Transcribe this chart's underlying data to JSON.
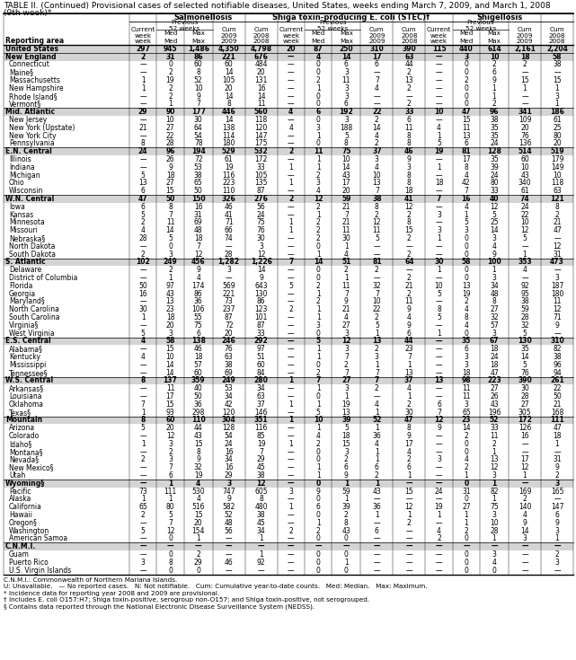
{
  "title_line1": "TABLE II. (Continued) Provisional cases of selected notifiable diseases, United States, weeks ending March 7, 2009, and March 1, 2008",
  "title_line2": "(9th week)*",
  "rows": [
    [
      "United States",
      "297",
      "945",
      "1,486",
      "4,350",
      "4,798",
      "20",
      "87",
      "250",
      "310",
      "390",
      "115",
      "440",
      "614",
      "2,161",
      "2,204"
    ],
    [
      "New England",
      "2",
      "31",
      "86",
      "221",
      "676",
      "—",
      "4",
      "14",
      "17",
      "63",
      "—",
      "3",
      "10",
      "18",
      "58"
    ],
    [
      "Connecticut",
      "—",
      "0",
      "60",
      "60",
      "484",
      "—",
      "0",
      "6",
      "6",
      "44",
      "—",
      "0",
      "2",
      "2",
      "38"
    ],
    [
      "Maine§",
      "—",
      "2",
      "8",
      "14",
      "20",
      "—",
      "0",
      "3",
      "—",
      "2",
      "—",
      "0",
      "6",
      "—",
      "—"
    ],
    [
      "Massachusetts",
      "1",
      "19",
      "52",
      "105",
      "131",
      "—",
      "2",
      "11",
      "7",
      "13",
      "—",
      "2",
      "9",
      "15",
      "15"
    ],
    [
      "New Hampshire",
      "1",
      "2",
      "10",
      "20",
      "16",
      "—",
      "1",
      "3",
      "4",
      "2",
      "—",
      "0",
      "1",
      "1",
      "1"
    ],
    [
      "Rhode Island§",
      "—",
      "2",
      "9",
      "14",
      "14",
      "—",
      "0",
      "3",
      "—",
      "—",
      "—",
      "0",
      "1",
      "—",
      "3"
    ],
    [
      "Vermont§",
      "—",
      "1",
      "7",
      "8",
      "11",
      "—",
      "0",
      "6",
      "—",
      "2",
      "—",
      "0",
      "2",
      "—",
      "1"
    ],
    [
      "Mid. Atlantic",
      "29",
      "90",
      "177",
      "446",
      "560",
      "4",
      "6",
      "192",
      "22",
      "33",
      "10",
      "47",
      "96",
      "341",
      "186"
    ],
    [
      "New Jersey",
      "—",
      "10",
      "30",
      "14",
      "118",
      "—",
      "0",
      "3",
      "2",
      "6",
      "—",
      "15",
      "38",
      "109",
      "61"
    ],
    [
      "New York (Upstate)",
      "21",
      "27",
      "64",
      "138",
      "120",
      "4",
      "3",
      "188",
      "14",
      "11",
      "4",
      "11",
      "35",
      "20",
      "25"
    ],
    [
      "New York City",
      "—",
      "22",
      "54",
      "114",
      "147",
      "—",
      "1",
      "5",
      "4",
      "8",
      "1",
      "13",
      "35",
      "76",
      "80"
    ],
    [
      "Pennsylvania",
      "8",
      "28",
      "78",
      "180",
      "175",
      "—",
      "0",
      "8",
      "2",
      "8",
      "5",
      "6",
      "24",
      "136",
      "20"
    ],
    [
      "E.N. Central",
      "24",
      "96",
      "194",
      "529",
      "532",
      "2",
      "11",
      "75",
      "37",
      "46",
      "19",
      "81",
      "128",
      "514",
      "519"
    ],
    [
      "Illinois",
      "—",
      "26",
      "72",
      "61",
      "172",
      "—",
      "1",
      "10",
      "3",
      "9",
      "—",
      "17",
      "35",
      "60",
      "179"
    ],
    [
      "Indiana",
      "—",
      "9",
      "53",
      "19",
      "33",
      "1",
      "1",
      "14",
      "4",
      "3",
      "1",
      "8",
      "39",
      "10",
      "149"
    ],
    [
      "Michigan",
      "5",
      "18",
      "38",
      "116",
      "105",
      "—",
      "2",
      "43",
      "10",
      "8",
      "—",
      "4",
      "24",
      "43",
      "10"
    ],
    [
      "Ohio",
      "13",
      "27",
      "65",
      "223",
      "135",
      "1",
      "3",
      "17",
      "13",
      "8",
      "18",
      "42",
      "80",
      "340",
      "118"
    ],
    [
      "Wisconsin",
      "6",
      "15",
      "50",
      "110",
      "87",
      "—",
      "4",
      "20",
      "7",
      "18",
      "—",
      "7",
      "33",
      "61",
      "63"
    ],
    [
      "W.N. Central",
      "47",
      "50",
      "150",
      "326",
      "276",
      "2",
      "12",
      "59",
      "38",
      "41",
      "7",
      "16",
      "40",
      "74",
      "121"
    ],
    [
      "Iowa",
      "6",
      "8",
      "16",
      "46",
      "56",
      "—",
      "2",
      "21",
      "8",
      "12",
      "—",
      "4",
      "12",
      "24",
      "8"
    ],
    [
      "Kansas",
      "5",
      "7",
      "31",
      "41",
      "24",
      "—",
      "1",
      "7",
      "2",
      "2",
      "3",
      "1",
      "5",
      "22",
      "2"
    ],
    [
      "Minnesota",
      "2",
      "11",
      "69",
      "71",
      "75",
      "1",
      "2",
      "21",
      "12",
      "8",
      "—",
      "5",
      "25",
      "10",
      "21"
    ],
    [
      "Missouri",
      "4",
      "14",
      "48",
      "66",
      "76",
      "1",
      "2",
      "11",
      "11",
      "15",
      "3",
      "3",
      "14",
      "12",
      "47"
    ],
    [
      "Nebraska§",
      "28",
      "5",
      "18",
      "74",
      "30",
      "—",
      "2",
      "30",
      "5",
      "2",
      "1",
      "0",
      "3",
      "5",
      "—"
    ],
    [
      "North Dakota",
      "—",
      "0",
      "7",
      "—",
      "3",
      "—",
      "0",
      "1",
      "—",
      "—",
      "—",
      "0",
      "4",
      "—",
      "12"
    ],
    [
      "South Dakota",
      "2",
      "3",
      "12",
      "28",
      "12",
      "—",
      "1",
      "4",
      "—",
      "2",
      "—",
      "0",
      "9",
      "1",
      "31"
    ],
    [
      "S. Atlantic",
      "102",
      "249",
      "456",
      "1,282",
      "1,226",
      "7",
      "14",
      "51",
      "81",
      "64",
      "30",
      "58",
      "100",
      "353",
      "473"
    ],
    [
      "Delaware",
      "—",
      "2",
      "9",
      "3",
      "14",
      "—",
      "0",
      "2",
      "2",
      "—",
      "1",
      "0",
      "1",
      "4",
      "—"
    ],
    [
      "District of Columbia",
      "—",
      "1",
      "4",
      "—",
      "9",
      "—",
      "0",
      "1",
      "—",
      "2",
      "—",
      "0",
      "3",
      "—",
      "3"
    ],
    [
      "Florida",
      "50",
      "97",
      "174",
      "569",
      "643",
      "5",
      "2",
      "11",
      "32",
      "21",
      "10",
      "13",
      "34",
      "92",
      "187"
    ],
    [
      "Georgia",
      "16",
      "43",
      "86",
      "221",
      "130",
      "—",
      "1",
      "7",
      "7",
      "2",
      "5",
      "19",
      "48",
      "95",
      "180"
    ],
    [
      "Maryland§",
      "—",
      "13",
      "36",
      "73",
      "86",
      "—",
      "2",
      "9",
      "10",
      "11",
      "—",
      "2",
      "8",
      "38",
      "11"
    ],
    [
      "North Carolina",
      "30",
      "23",
      "106",
      "237",
      "123",
      "2",
      "1",
      "21",
      "22",
      "9",
      "8",
      "4",
      "27",
      "59",
      "12"
    ],
    [
      "South Carolina",
      "1",
      "18",
      "55",
      "87",
      "101",
      "—",
      "1",
      "4",
      "2",
      "4",
      "5",
      "8",
      "32",
      "28",
      "71"
    ],
    [
      "Virginia§",
      "—",
      "20",
      "75",
      "72",
      "87",
      "—",
      "3",
      "27",
      "5",
      "9",
      "—",
      "4",
      "57",
      "32",
      "9"
    ],
    [
      "West Virginia",
      "5",
      "3",
      "6",
      "20",
      "33",
      "—",
      "0",
      "3",
      "1",
      "6",
      "1",
      "0",
      "3",
      "5",
      "—"
    ],
    [
      "E.S. Central",
      "4",
      "58",
      "138",
      "246",
      "292",
      "—",
      "5",
      "12",
      "13",
      "44",
      "—",
      "35",
      "67",
      "130",
      "310"
    ],
    [
      "Alabama§",
      "—",
      "15",
      "46",
      "76",
      "97",
      "—",
      "1",
      "3",
      "2",
      "23",
      "—",
      "6",
      "18",
      "35",
      "82"
    ],
    [
      "Kentucky",
      "4",
      "10",
      "18",
      "63",
      "51",
      "—",
      "1",
      "7",
      "3",
      "7",
      "—",
      "3",
      "24",
      "14",
      "38"
    ],
    [
      "Mississippi",
      "—",
      "14",
      "57",
      "38",
      "60",
      "—",
      "0",
      "2",
      "1",
      "1",
      "—",
      "3",
      "18",
      "5",
      "96"
    ],
    [
      "Tennessee§",
      "—",
      "14",
      "60",
      "69",
      "84",
      "—",
      "2",
      "7",
      "7",
      "13",
      "—",
      "18",
      "47",
      "76",
      "94"
    ],
    [
      "W.S. Central",
      "8",
      "137",
      "359",
      "249",
      "280",
      "1",
      "7",
      "27",
      "7",
      "37",
      "13",
      "98",
      "223",
      "390",
      "261"
    ],
    [
      "Arkansas§",
      "—",
      "11",
      "40",
      "53",
      "34",
      "—",
      "1",
      "3",
      "2",
      "4",
      "—",
      "11",
      "27",
      "30",
      "22"
    ],
    [
      "Louisiana",
      "—",
      "17",
      "50",
      "34",
      "63",
      "—",
      "0",
      "1",
      "—",
      "1",
      "—",
      "11",
      "26",
      "28",
      "50"
    ],
    [
      "Oklahoma",
      "7",
      "15",
      "36",
      "42",
      "37",
      "1",
      "1",
      "19",
      "4",
      "2",
      "6",
      "3",
      "43",
      "27",
      "21"
    ],
    [
      "Texas§",
      "1",
      "93",
      "298",
      "120",
      "146",
      "—",
      "5",
      "13",
      "1",
      "30",
      "7",
      "65",
      "196",
      "305",
      "168"
    ],
    [
      "Mountain",
      "8",
      "60",
      "110",
      "304",
      "351",
      "1",
      "10",
      "39",
      "52",
      "47",
      "12",
      "23",
      "52",
      "172",
      "111"
    ],
    [
      "Arizona",
      "5",
      "20",
      "44",
      "128",
      "116",
      "—",
      "1",
      "5",
      "1",
      "8",
      "9",
      "14",
      "33",
      "126",
      "47"
    ],
    [
      "Colorado",
      "—",
      "12",
      "43",
      "54",
      "85",
      "—",
      "4",
      "18",
      "36",
      "9",
      "—",
      "2",
      "11",
      "16",
      "18"
    ],
    [
      "Idaho§",
      "1",
      "3",
      "15",
      "24",
      "19",
      "1",
      "2",
      "15",
      "4",
      "17",
      "—",
      "0",
      "2",
      "—",
      "1"
    ],
    [
      "Montana§",
      "—",
      "2",
      "8",
      "16",
      "7",
      "—",
      "0",
      "3",
      "1",
      "4",
      "—",
      "0",
      "1",
      "—",
      "—"
    ],
    [
      "Nevada§",
      "2",
      "3",
      "9",
      "34",
      "29",
      "—",
      "0",
      "2",
      "1",
      "2",
      "3",
      "4",
      "13",
      "17",
      "31"
    ],
    [
      "New Mexico§",
      "—",
      "7",
      "32",
      "16",
      "45",
      "—",
      "1",
      "6",
      "6",
      "6",
      "—",
      "2",
      "12",
      "12",
      "9"
    ],
    [
      "Utah",
      "—",
      "6",
      "19",
      "29",
      "38",
      "—",
      "1",
      "9",
      "2",
      "1",
      "—",
      "1",
      "3",
      "1",
      "2"
    ],
    [
      "Wyoming§",
      "—",
      "1",
      "4",
      "3",
      "12",
      "—",
      "0",
      "1",
      "1",
      "—",
      "—",
      "0",
      "1",
      "—",
      "3"
    ],
    [
      "Pacific",
      "73",
      "111",
      "530",
      "747",
      "605",
      "3",
      "9",
      "59",
      "43",
      "15",
      "24",
      "31",
      "82",
      "169",
      "165"
    ],
    [
      "Alaska",
      "1",
      "1",
      "4",
      "9",
      "8",
      "—",
      "0",
      "1",
      "—",
      "—",
      "—",
      "0",
      "1",
      "2",
      "—"
    ],
    [
      "California",
      "65",
      "80",
      "516",
      "582",
      "480",
      "1",
      "6",
      "39",
      "36",
      "12",
      "19",
      "27",
      "75",
      "140",
      "147"
    ],
    [
      "Hawaii",
      "2",
      "5",
      "15",
      "52",
      "38",
      "—",
      "0",
      "2",
      "1",
      "1",
      "1",
      "1",
      "3",
      "4",
      "6"
    ],
    [
      "Oregon§",
      "—",
      "7",
      "20",
      "48",
      "45",
      "—",
      "1",
      "8",
      "—",
      "2",
      "—",
      "1",
      "10",
      "9",
      "9"
    ],
    [
      "Washington",
      "5",
      "12",
      "154",
      "56",
      "34",
      "2",
      "2",
      "43",
      "6",
      "—",
      "4",
      "2",
      "28",
      "14",
      "3"
    ],
    [
      "American Samoa",
      "—",
      "0",
      "1",
      "—",
      "1",
      "—",
      "0",
      "0",
      "—",
      "—",
      "2",
      "0",
      "1",
      "3",
      "1"
    ],
    [
      "C.N.M.I.",
      "—",
      "—",
      "—",
      "—",
      "—",
      "—",
      "—",
      "—",
      "—",
      "—",
      "—",
      "—",
      "—",
      "—",
      "—"
    ],
    [
      "Guam",
      "—",
      "0",
      "2",
      "—",
      "1",
      "—",
      "0",
      "0",
      "—",
      "—",
      "—",
      "0",
      "3",
      "—",
      "2"
    ],
    [
      "Puerto Rico",
      "3",
      "8",
      "29",
      "46",
      "92",
      "—",
      "0",
      "1",
      "—",
      "—",
      "—",
      "0",
      "4",
      "—",
      "3"
    ],
    [
      "U.S. Virgin Islands",
      "—",
      "0",
      "0",
      "—",
      "—",
      "—",
      "0",
      "0",
      "—",
      "—",
      "—",
      "0",
      "0",
      "—",
      "—"
    ]
  ],
  "bold_rows": [
    0,
    1,
    8,
    13,
    19,
    27,
    37,
    42,
    47,
    55,
    63
  ],
  "footnotes": [
    "C.N.M.I.: Commonwealth of Northern Mariana Islands.",
    "U: Unavailable.   — No reported cases.   N: Not notifiable.   Cum: Cumulative year-to-date counts.   Med: Median.   Max: Maximum.",
    "* Incidence data for reporting year 2008 and 2009 are provisional.",
    "† Includes E. coli O157:H7; Shiga toxin-positive, serogroup non-O157; and Shiga toxin-positive, not serogrouped.",
    "§ Contains data reported through the National Electronic Disease Surveillance System (NEDSS)."
  ],
  "col_widths_rel": [
    17.5,
    3.8,
    3.8,
    4.0,
    4.5,
    4.5,
    3.8,
    3.8,
    4.0,
    4.5,
    4.5,
    3.8,
    3.8,
    4.0,
    4.5,
    4.5
  ],
  "font_size_title": 6.5,
  "font_size_header": 6.0,
  "font_size_subheader": 5.2,
  "font_size_data": 5.5,
  "font_size_footnote": 5.2
}
